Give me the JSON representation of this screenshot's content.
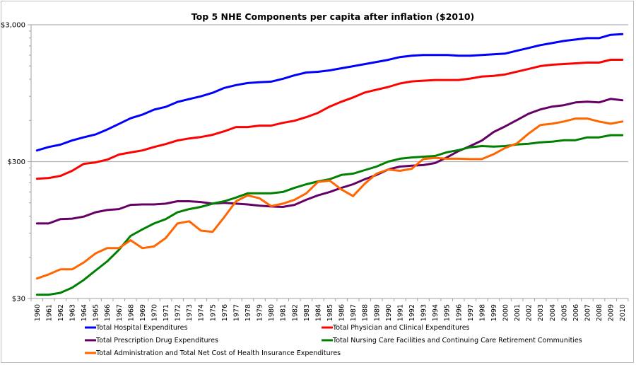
{
  "chart_data": {
    "type": "line",
    "title": "Top 5 NHE Components per capita after inflation ($2010)",
    "xlabel": "",
    "ylabel": "",
    "yscale": "log",
    "ylim": [
      30,
      3000
    ],
    "yticks": [
      {
        "value": 3000,
        "label": "$3,000"
      },
      {
        "value": 300,
        "label": "$300"
      },
      {
        "value": 30,
        "label": "$30"
      }
    ],
    "grid": "major horizontal",
    "legend_position": "bottom",
    "x": [
      1960,
      1961,
      1962,
      1963,
      1964,
      1965,
      1966,
      1967,
      1968,
      1969,
      1970,
      1971,
      1972,
      1973,
      1974,
      1975,
      1976,
      1977,
      1978,
      1979,
      1980,
      1981,
      1982,
      1983,
      1984,
      1985,
      1986,
      1987,
      1988,
      1989,
      1990,
      1991,
      1992,
      1993,
      1994,
      1995,
      1996,
      1997,
      1998,
      1999,
      2000,
      2001,
      2002,
      2003,
      2004,
      2005,
      2006,
      2007,
      2008,
      2009,
      2010
    ],
    "series": [
      {
        "name": "Total Hospital Expenditures",
        "color": "#0000ff",
        "values": [
          362,
          384,
          399,
          428,
          452,
          474,
          515,
          566,
          622,
          661,
          719,
          754,
          819,
          859,
          900,
          955,
          1037,
          1087,
          1126,
          1140,
          1153,
          1209,
          1282,
          1344,
          1360,
          1393,
          1443,
          1494,
          1548,
          1604,
          1662,
          1742,
          1784,
          1805,
          1805,
          1805,
          1784,
          1784,
          1805,
          1827,
          1849,
          1938,
          2031,
          2129,
          2205,
          2284,
          2340,
          2397,
          2397,
          2534,
          2564
        ]
      },
      {
        "name": "Total Physician and Clinical Expenditures",
        "color": "#ff0000",
        "values": [
          225,
          228,
          236,
          257,
          289,
          296,
          310,
          338,
          350,
          362,
          384,
          403,
          428,
          443,
          454,
          471,
          500,
          537,
          537,
          550,
          550,
          576,
          597,
          634,
          681,
          757,
          822,
          883,
          960,
          1006,
          1053,
          1117,
          1157,
          1171,
          1185,
          1185,
          1185,
          1213,
          1256,
          1271,
          1301,
          1363,
          1428,
          1497,
          1532,
          1550,
          1569,
          1588,
          1588,
          1664,
          1664
        ]
      },
      {
        "name": "Total Prescription Drug Expenditures",
        "color": "#660066",
        "values": [
          106,
          106,
          114,
          115,
          119,
          128,
          133,
          135,
          145,
          146,
          146,
          148,
          154,
          154,
          152,
          148,
          150,
          148,
          146,
          143,
          141,
          140,
          145,
          158,
          170,
          180,
          193,
          205,
          223,
          240,
          263,
          276,
          280,
          283,
          293,
          322,
          358,
          390,
          428,
          494,
          543,
          604,
          672,
          722,
          757,
          775,
          812,
          822,
          812,
          862,
          842
        ]
      },
      {
        "name": "Total Nursing Care Facilities and Continuing Care Retirement Communities",
        "color": "#008000",
        "values": [
          32,
          32,
          33,
          36,
          41,
          48,
          56,
          68,
          86,
          96,
          106,
          114,
          128,
          135,
          140,
          148,
          154,
          164,
          176,
          176,
          176,
          180,
          193,
          205,
          215,
          223,
          240,
          245,
          260,
          276,
          300,
          315,
          322,
          326,
          330,
          351,
          364,
          382,
          390,
          386,
          390,
          400,
          405,
          415,
          420,
          430,
          430,
          451,
          451,
          468,
          468
        ]
      },
      {
        "name": "Total Administration and Total Net Cost of Health Insurance Expenditures",
        "color": "#ff6600",
        "values": [
          42,
          45,
          49,
          49,
          55,
          64,
          70,
          70,
          80,
          70,
          72,
          83,
          106,
          110,
          94,
          92,
          118,
          154,
          170,
          162,
          142,
          148,
          158,
          176,
          213,
          218,
          188,
          168,
          207,
          245,
          263,
          257,
          266,
          313,
          320,
          315,
          315,
          313,
          313,
          340,
          378,
          408,
          482,
          555,
          568,
          589,
          619,
          619,
          589,
          568,
          589
        ]
      }
    ]
  }
}
